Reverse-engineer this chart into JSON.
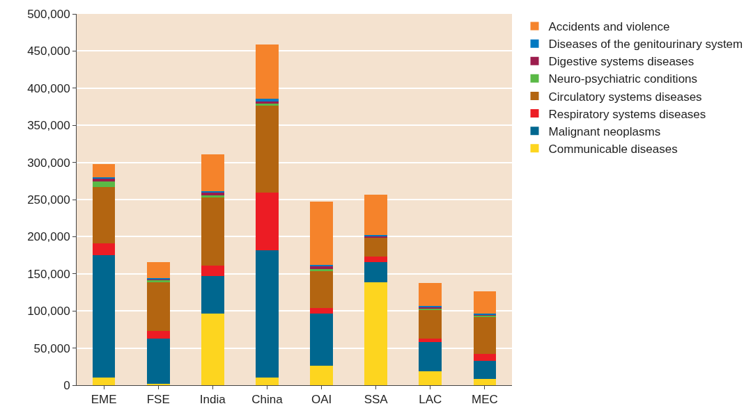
{
  "chart_data": {
    "type": "bar",
    "stacked": true,
    "categories": [
      "EME",
      "FSE",
      "India",
      "China",
      "OAI",
      "SSA",
      "LAC",
      "MEC"
    ],
    "series": [
      {
        "name": "Communicable diseases",
        "color": "#fdd51f",
        "values": [
          10000,
          2000,
          96000,
          10000,
          26000,
          139000,
          19000,
          8000
        ]
      },
      {
        "name": "Malignant neoplasms",
        "color": "#00678f",
        "values": [
          165000,
          61000,
          51000,
          172000,
          70000,
          27000,
          39000,
          25000
        ]
      },
      {
        "name": "Respiratory systems diseases",
        "color": "#ec1c24",
        "values": [
          16000,
          10000,
          14000,
          77000,
          8000,
          7000,
          5000,
          9000
        ]
      },
      {
        "name": "Circulatory systems diseases",
        "color": "#b36511",
        "values": [
          76000,
          66000,
          92000,
          117000,
          50000,
          26000,
          39000,
          50000
        ]
      },
      {
        "name": "Neuro-psychiatric conditions",
        "color": "#5ab946",
        "values": [
          7000,
          2000,
          3000,
          3000,
          2000,
          null,
          1000,
          2000
        ]
      },
      {
        "name": "Digestive systems diseases",
        "color": "#9c1c4d",
        "values": [
          4000,
          2000,
          3000,
          3000,
          4000,
          1000,
          2000,
          1000
        ]
      },
      {
        "name": "Diseases of the genitourinary system",
        "color": "#0078c1",
        "values": [
          2000,
          1000,
          2000,
          4000,
          2000,
          2000,
          2000,
          1000
        ]
      },
      {
        "name": "Accidents and violence",
        "color": "#f5832b",
        "values": [
          18000,
          22000,
          50000,
          73000,
          85000,
          55000,
          31000,
          30000
        ]
      }
    ],
    "ylim": [
      0,
      500000
    ],
    "yticks": [
      {
        "value": 0,
        "label": "0"
      },
      {
        "value": 50000,
        "label": "50,000"
      },
      {
        "value": 100000,
        "label": "100,000"
      },
      {
        "value": 150000,
        "label": "150,000"
      },
      {
        "value": 200000,
        "label": "200,000"
      },
      {
        "value": 250000,
        "label": "250,000"
      },
      {
        "value": 300000,
        "label": "300,000"
      },
      {
        "value": 350000,
        "label": "350,000"
      },
      {
        "value": 400000,
        "label": "400,000"
      },
      {
        "value": 450000,
        "label": "450,000"
      },
      {
        "value": 500000,
        "label": "500,000"
      }
    ],
    "grid": "y",
    "legend": "right"
  }
}
